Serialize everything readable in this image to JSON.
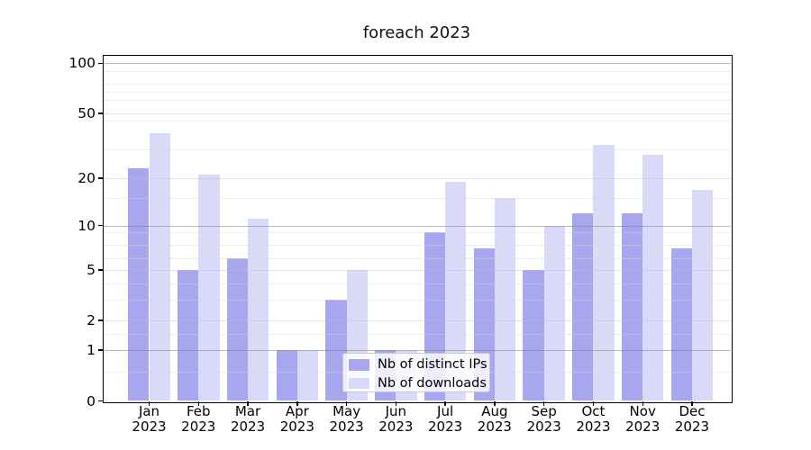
{
  "title": "foreach 2023",
  "chart_data": {
    "type": "bar",
    "title": "foreach 2023",
    "categories": [
      "Jan",
      "Feb",
      "Mar",
      "Apr",
      "May",
      "Jun",
      "Jul",
      "Aug",
      "Sep",
      "Oct",
      "Nov",
      "Dec"
    ],
    "category_year": "2023",
    "series": [
      {
        "name": "Nb of distinct IPs",
        "color": "#a7a7ef",
        "values": [
          23,
          5,
          6,
          1,
          3,
          1,
          9,
          7,
          5,
          12,
          12,
          7
        ]
      },
      {
        "name": "Nb of downloads",
        "color": "#d9d9f8",
        "values": [
          38,
          21,
          11,
          1,
          5,
          1,
          19,
          15,
          10,
          32,
          28,
          17
        ]
      }
    ],
    "yscale": "log1p",
    "yticks": [
      0,
      1,
      2,
      5,
      10,
      20,
      50,
      100
    ],
    "ytick_labels": [
      "0",
      "1",
      "2",
      "5",
      "10",
      "20",
      "50",
      "100"
    ],
    "ylim": [
      0,
      111
    ],
    "grid": true,
    "legend_position": "lower center",
    "colors": {
      "distinct_ips": "#a7a7ef",
      "downloads": "#d9d9f8",
      "major_grid": "#9e9e9e",
      "minor_grid": "#d9d9d9",
      "axis": "#000000"
    }
  }
}
